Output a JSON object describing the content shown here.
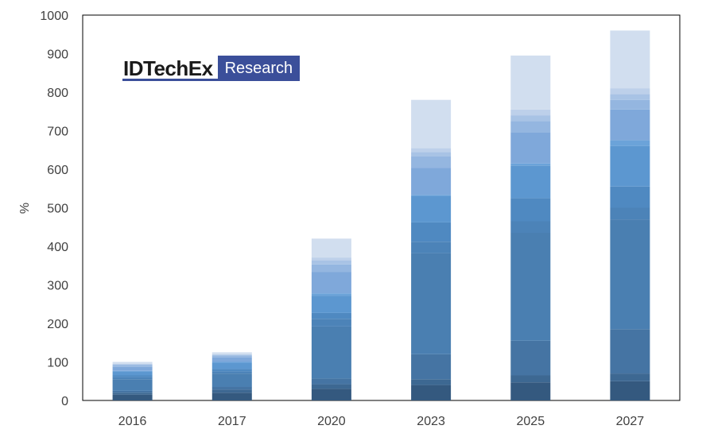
{
  "chart_data": {
    "type": "bar",
    "stacked": true,
    "title": "",
    "xlabel": "",
    "ylabel": "%",
    "ylim": [
      0,
      1000
    ],
    "yticks": [
      0,
      100,
      200,
      300,
      400,
      500,
      600,
      700,
      800,
      900,
      1000
    ],
    "categories": [
      "2016",
      "2017",
      "2020",
      "2023",
      "2025",
      "2027"
    ],
    "grid": false,
    "legend": "none",
    "series": [
      {
        "color": "#34597f",
        "values": [
          15,
          20,
          30,
          40,
          47,
          50
        ]
      },
      {
        "color": "#3d6892",
        "values": [
          5,
          8,
          12,
          15,
          18,
          20
        ]
      },
      {
        "color": "#4574a3",
        "values": [
          5,
          7,
          15,
          65,
          90,
          115
        ]
      },
      {
        "color": "#4a7fb1",
        "values": [
          30,
          35,
          135,
          262,
          280,
          285
        ]
      },
      {
        "color": "#4c83b8",
        "values": [
          5,
          5,
          20,
          30,
          30,
          30
        ]
      },
      {
        "color": "#4f89c1",
        "values": [
          5,
          7,
          15,
          50,
          60,
          55
        ]
      },
      {
        "color": "#5c97d0",
        "values": [
          10,
          15,
          45,
          68,
          85,
          105
        ]
      },
      {
        "color": "#6ba3d9",
        "values": [
          2,
          3,
          6,
          3,
          5,
          15
        ]
      },
      {
        "color": "#7fa8da",
        "values": [
          10,
          12,
          55,
          70,
          80,
          80
        ]
      },
      {
        "color": "#94b6e0",
        "values": [
          5,
          5,
          20,
          30,
          30,
          25
        ]
      },
      {
        "color": "#a8c3e5",
        "values": [
          2,
          2,
          10,
          12,
          15,
          15
        ]
      },
      {
        "color": "#bdd0ea",
        "values": [
          1,
          1,
          8,
          10,
          15,
          15
        ]
      },
      {
        "color": "#d1deef",
        "values": [
          5,
          5,
          49,
          125,
          140,
          150
        ]
      }
    ]
  },
  "logo": {
    "brand": "IDTechEx",
    "sub": "Research"
  },
  "colors": {
    "axis": "#404040",
    "frame": "#000000",
    "logo_blue": "#3b4f9a"
  }
}
